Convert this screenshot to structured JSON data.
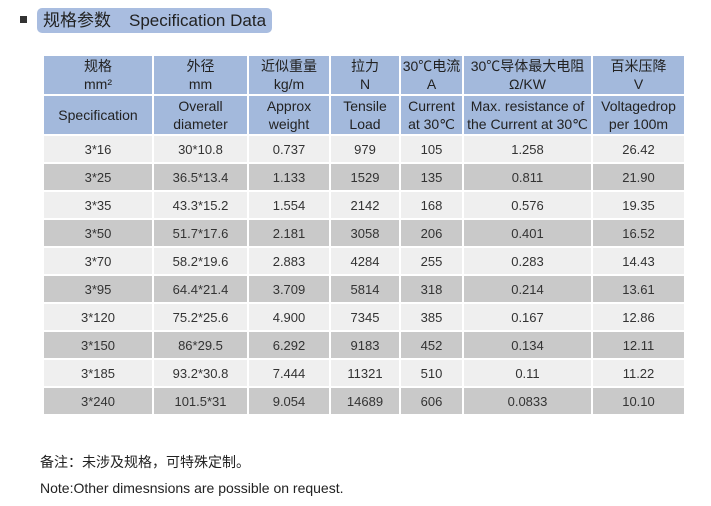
{
  "title": {
    "cn": "规格参数",
    "en": "Specification Data"
  },
  "columns": [
    {
      "cn": "规格",
      "unit": "mm²",
      "en1": "Specification",
      "en2": ""
    },
    {
      "cn": "外径",
      "unit": "mm",
      "en1": "Overall",
      "en2": "diameter"
    },
    {
      "cn": "近似重量",
      "unit": "kg/m",
      "en1": "Approx",
      "en2": "weight"
    },
    {
      "cn": "拉力",
      "unit": "N",
      "en1": "Tensile",
      "en2": "Load"
    },
    {
      "cn": "30℃电流",
      "unit": "A",
      "en1": "Current",
      "en2": "at 30℃"
    },
    {
      "cn": "30℃导体最大电阻",
      "unit": "Ω/KW",
      "en1": "Max. resistance of",
      "en2": "the Current at 30℃"
    },
    {
      "cn": "百米压降",
      "unit": "V",
      "en1": "Voltagedrop",
      "en2": "per 100m"
    }
  ],
  "rows": [
    [
      "3*16",
      "30*10.8",
      "0.737",
      "979",
      "105",
      "1.258",
      "26.42"
    ],
    [
      "3*25",
      "36.5*13.4",
      "1.133",
      "1529",
      "135",
      "0.811",
      "21.90"
    ],
    [
      "3*35",
      "43.3*15.2",
      "1.554",
      "2142",
      "168",
      "0.576",
      "19.35"
    ],
    [
      "3*50",
      "51.7*17.6",
      "2.181",
      "3058",
      "206",
      "0.401",
      "16.52"
    ],
    [
      "3*70",
      "58.2*19.6",
      "2.883",
      "4284",
      "255",
      "0.283",
      "14.43"
    ],
    [
      "3*95",
      "64.4*21.4",
      "3.709",
      "5814",
      "318",
      "0.214",
      "13.61"
    ],
    [
      "3*120",
      "75.2*25.6",
      "4.900",
      "7345",
      "385",
      "0.167",
      "12.86"
    ],
    [
      "3*150",
      "86*29.5",
      "6.292",
      "9183",
      "452",
      "0.134",
      "12.11"
    ],
    [
      "3*185",
      "93.2*30.8",
      "7.444",
      "11321",
      "510",
      "0.11",
      "11.22"
    ],
    [
      "3*240",
      "101.5*31",
      "9.054",
      "14689",
      "606",
      "0.0833",
      "10.10"
    ]
  ],
  "notes": {
    "cn": "备注：未涉及规格，可特殊定制。",
    "en": "Note:Other dimesnsions are possible on request."
  },
  "colors": {
    "header": "#a3b9dc",
    "title_bg": "#a9bde0",
    "row_light": "#efefef",
    "row_dark": "#c9c9c9"
  }
}
